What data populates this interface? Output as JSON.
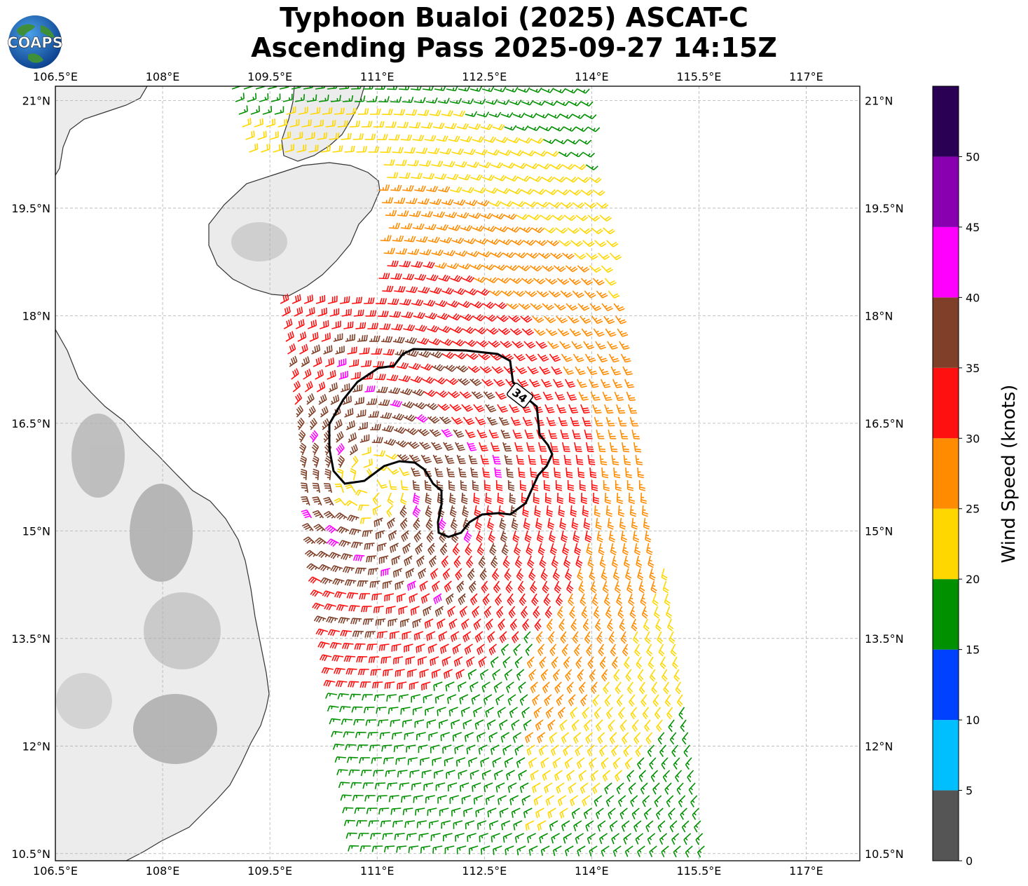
{
  "title": {
    "line1": "Typhoon Bualoi (2025) ASCAT-C",
    "line2": "Ascending Pass 2025-09-27 14:15Z"
  },
  "logo": {
    "text": "COAPS"
  },
  "map": {
    "lon_range": [
      106.5,
      117.75
    ],
    "lat_range": [
      10.4,
      21.2
    ],
    "lon_ticks": [
      "106.5°E",
      "108°E",
      "109.5°E",
      "111°E",
      "112.5°E",
      "114°E",
      "115.5°E",
      "117°E"
    ],
    "lat_ticks": [
      "21°N",
      "19.5°N",
      "18°N",
      "16.5°N",
      "15°N",
      "13.5°N",
      "12°N",
      "10.5°N"
    ],
    "gridlines": true,
    "contour_label": "34",
    "storm_center": {
      "lon": 110.9,
      "lat": 15.65
    }
  },
  "colorbar": {
    "label": "Wind Speed (knots)",
    "ticks": [
      "0",
      "5",
      "10",
      "15",
      "20",
      "25",
      "30",
      "35",
      "40",
      "45",
      "50"
    ],
    "colors": [
      "#555555",
      "#00bfff",
      "#0040ff",
      "#009000",
      "#ffd700",
      "#ff8c00",
      "#ff1010",
      "#7f3f28",
      "#ff00ff",
      "#8800b0",
      "#2a0055"
    ]
  }
}
